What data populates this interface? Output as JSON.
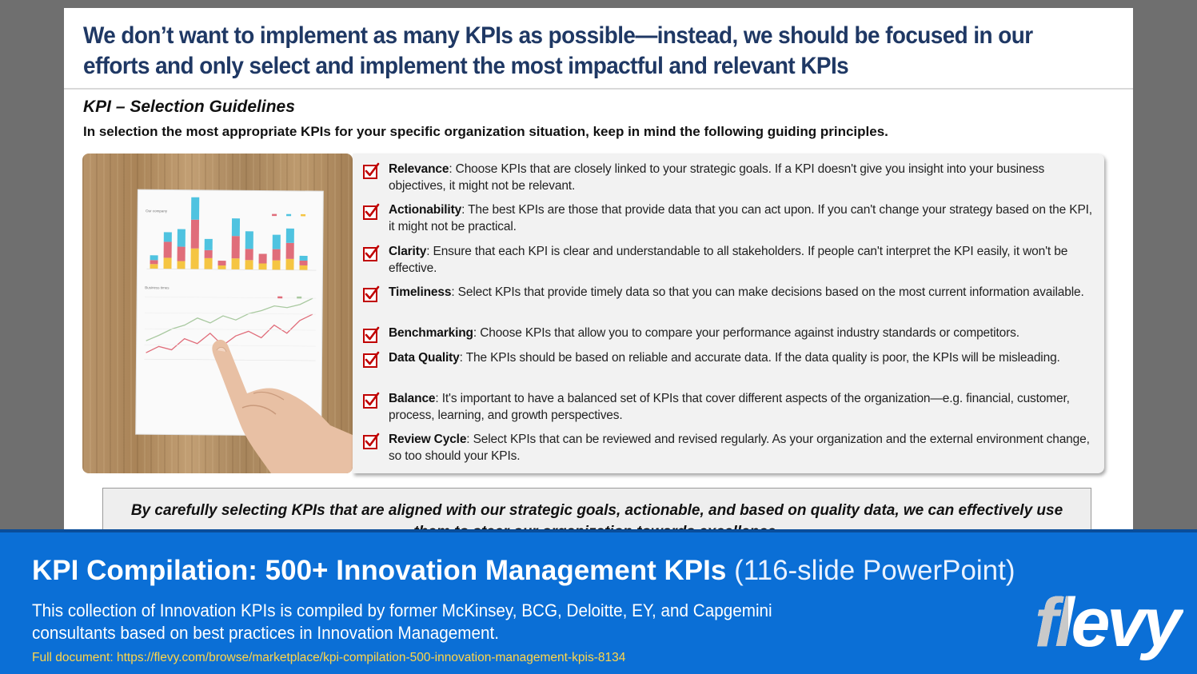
{
  "slide": {
    "title": "We don’t want to implement as many KPIs as possible—instead, we should be focused in our efforts and only select and implement the most impactful and relevant KPIs",
    "section_heading": "KPI – Selection Guidelines",
    "intro": "In selection the most appropriate KPIs for your specific organization situation, keep in mind the following guiding principles.",
    "principles": [
      {
        "term": "Relevance",
        "text": ": Choose KPIs that are closely linked to your strategic goals. If a KPI doesn't give you insight into your business objectives, it might not be relevant."
      },
      {
        "term": "Actionability",
        "text": ": The best KPIs are those that provide data that you can act upon. If you can't change your strategy based on the KPI, it might not be practical."
      },
      {
        "term": "Clarity",
        "text": ": Ensure that each KPI is clear and understandable to all stakeholders. If people can't interpret the KPI easily, it won't be effective."
      },
      {
        "term": "Timeliness",
        "text": ": Select KPIs that provide timely data so that you can make decisions based on the most current information available."
      },
      {
        "term": "Benchmarking",
        "text": ": Choose KPIs that allow you to compare your performance against industry standards or competitors."
      },
      {
        "term": "Data Quality",
        "text": ": The KPIs should be based on reliable and accurate data. If the data quality is poor, the KPIs will be misleading."
      },
      {
        "term": "Balance",
        "text": ": It's important to have a balanced set of KPIs that cover different aspects of the organization—e.g. financial, customer, process, learning, and growth perspectives."
      },
      {
        "term": "Review Cycle",
        "text": ": Select KPIs that can be reviewed and revised regularly. As your organization and the external environment change, so too should your KPIs."
      }
    ],
    "conclusion": "By carefully selecting KPIs that are aligned with our strategic goals, actionable, and based on quality data, we can effectively use them to steer our organization towards excellence.",
    "photo_caption_chart1": "Our company",
    "photo_caption_chart2": "Business times"
  },
  "banner": {
    "title_bold": "KPI Compilation: 500+ Innovation Management KPIs",
    "title_light": "(116-slide PowerPoint)",
    "description": "This collection of Innovation KPIs is compiled by former McKinsey, BCG, Deloitte, EY, and Capgemini consultants based on best practices in Innovation Management.",
    "url": "Full document: https://flevy.com/browse/marketplace/kpi-compilation-500-innovation-management-kpis-8134",
    "logo_text": "flevy"
  },
  "colors": {
    "title_navy": "#1f3864",
    "check_red": "#c00000",
    "banner_blue": "#0b6fd6",
    "url_yellow": "#ffd54a"
  }
}
